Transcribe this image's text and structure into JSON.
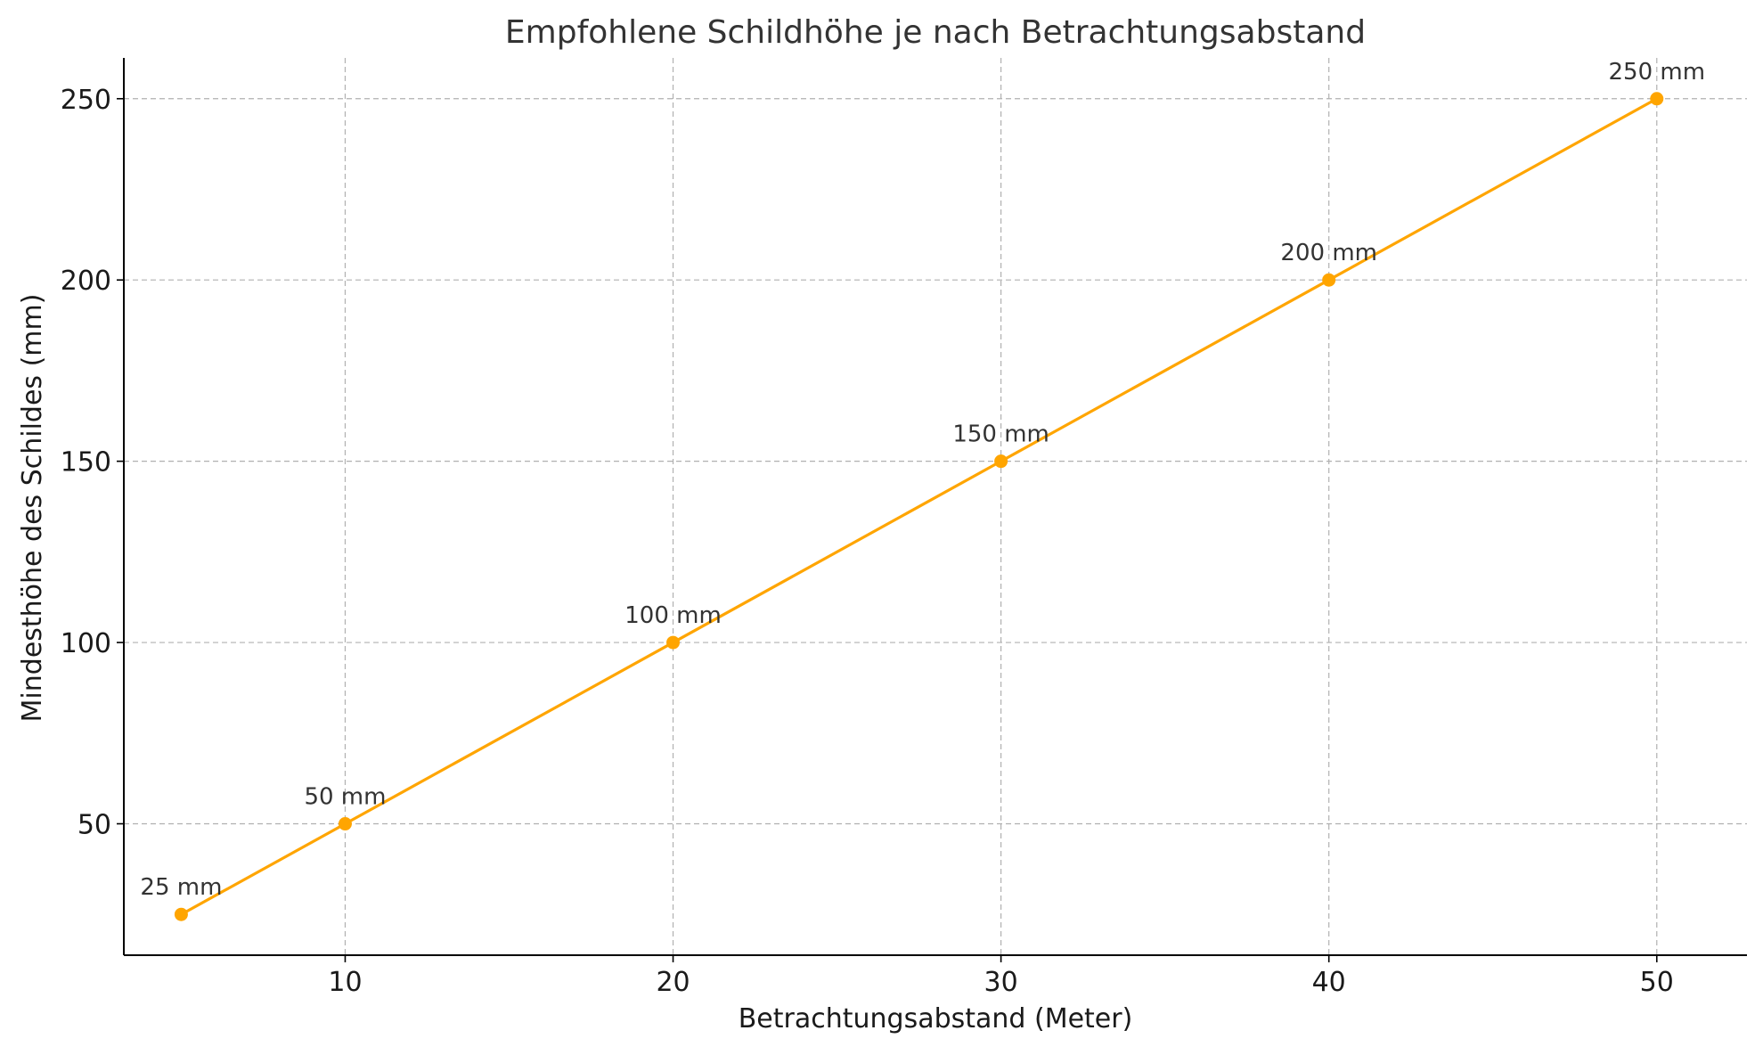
{
  "chart_data": {
    "type": "line",
    "title": "Empfohlene Schildhöhe je nach Betrachtungsabstand",
    "xlabel": "Betrachtungsabstand (Meter)",
    "ylabel": "Mindesthöhe des Schildes (mm)",
    "x": [
      5,
      10,
      20,
      30,
      40,
      50
    ],
    "series": [
      {
        "values": [
          25,
          50,
          100,
          150,
          200,
          250
        ],
        "color": "#FFA500"
      }
    ],
    "data_labels": [
      "25 mm",
      "50 mm",
      "100 mm",
      "150 mm",
      "200 mm",
      "250 mm"
    ],
    "x_ticks": [
      10,
      20,
      30,
      40,
      50
    ],
    "y_ticks": [
      50,
      100,
      150,
      200,
      250
    ],
    "xlim": [
      3.25,
      52.75
    ],
    "ylim": [
      13.75,
      261.25
    ],
    "grid": true,
    "grid_style": "dashed",
    "grid_color": "#b0b0b0",
    "axis_color": "#000000",
    "text_color": "#333333"
  }
}
